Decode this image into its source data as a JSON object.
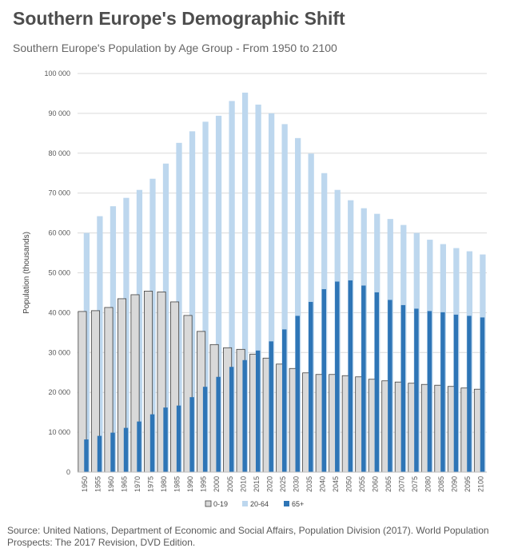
{
  "title": "Southern Europe's Demographic Shift",
  "subtitle": "Southern Europe's Population  by Age Group - From 1950 to 2100",
  "source": "Source: United Nations, Department of Economic and Social Affairs, Population Division (2017). World Population Prospects: The 2017 Revision, DVD Edition.",
  "chart_data": {
    "type": "bar",
    "title": "Southern Europe's Demographic Shift",
    "subtitle": "Southern Europe's Population  by Age Group - From 1950 to 2100",
    "ylabel": "Population (thousands)",
    "xlabel": "",
    "ylim": [
      0,
      100000
    ],
    "yticks": [
      0,
      10000,
      20000,
      30000,
      40000,
      50000,
      60000,
      70000,
      80000,
      90000,
      100000
    ],
    "ytick_labels": [
      "0",
      "10 000",
      "20 000",
      "30 000",
      "40 000",
      "50 000",
      "60 000",
      "70 000",
      "80 000",
      "90 000",
      "100 000"
    ],
    "grid": true,
    "legend_position": "bottom",
    "categories": [
      "1950",
      "1955",
      "1960",
      "1965",
      "1970",
      "1975",
      "1980",
      "1985",
      "1990",
      "1995",
      "2000",
      "2005",
      "2010",
      "2015",
      "2020",
      "2025",
      "2030",
      "2035",
      "2040",
      "2045",
      "2050",
      "2055",
      "2060",
      "2065",
      "2070",
      "2075",
      "2080",
      "2085",
      "2090",
      "2095",
      "2100"
    ],
    "series": [
      {
        "name": "0-19",
        "color": "#d9d9d9",
        "values": [
          40300,
          40500,
          41300,
          43500,
          44500,
          45400,
          45200,
          42700,
          39300,
          35300,
          32000,
          31200,
          30800,
          29600,
          28600,
          27100,
          26000,
          24900,
          24500,
          24500,
          24200,
          23900,
          23300,
          22900,
          22600,
          22300,
          22000,
          21800,
          21500,
          21100,
          20800
        ]
      },
      {
        "name": "20-64",
        "color": "#bdd7ee",
        "values": [
          60000,
          64200,
          66700,
          68800,
          70800,
          73600,
          77400,
          82600,
          85500,
          87900,
          89400,
          93100,
          95200,
          92200,
          90000,
          87300,
          83800,
          79900,
          75000,
          70800,
          68200,
          66200,
          64800,
          63500,
          62000,
          60000,
          58300,
          57200,
          56200,
          55400,
          54600
        ]
      },
      {
        "name": "65+",
        "color": "#2e75b6",
        "values": [
          8200,
          9100,
          9900,
          11100,
          12700,
          14500,
          16200,
          16700,
          18800,
          21400,
          23900,
          26400,
          28100,
          30500,
          32800,
          35800,
          39200,
          42700,
          45900,
          47800,
          48100,
          46800,
          45100,
          43200,
          41900,
          41000,
          40400,
          40100,
          39500,
          39200,
          38800
        ]
      }
    ]
  }
}
